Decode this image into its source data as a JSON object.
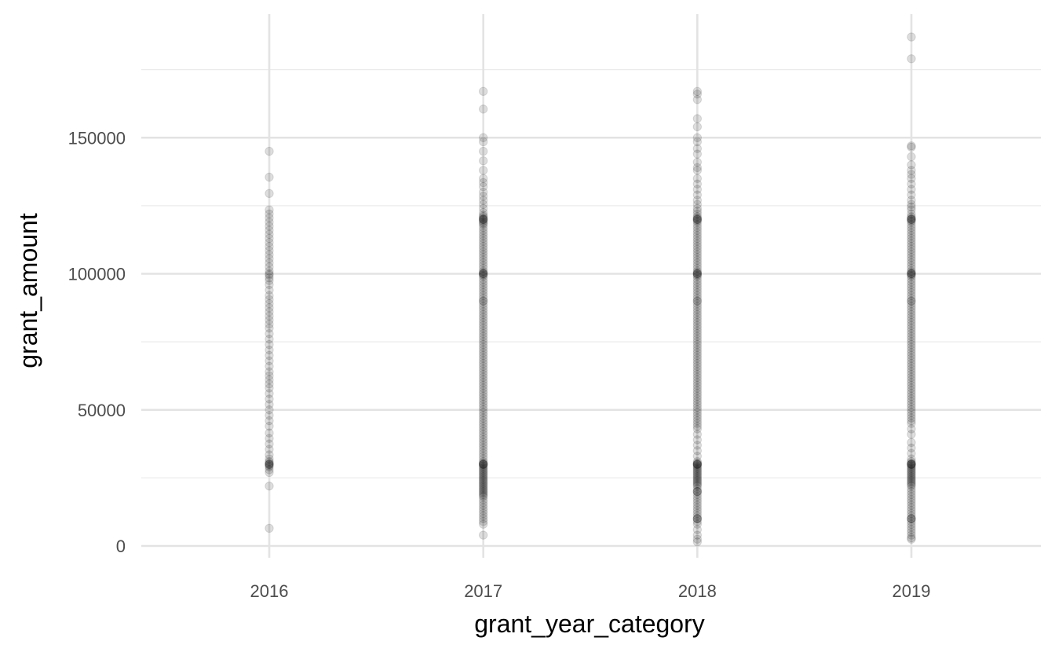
{
  "chart_data": {
    "type": "scatter",
    "title": "",
    "xlabel": "grant_year_category",
    "ylabel": "grant_amount",
    "categories": [
      "2016",
      "2017",
      "2018",
      "2019"
    ],
    "ylim": [
      -2500,
      192000
    ],
    "y_ticks": [
      0,
      50000,
      100000,
      150000
    ],
    "y_tick_labels": [
      "0",
      "50000",
      "100000",
      "150000"
    ],
    "grid": true,
    "legend": "none",
    "point_color": "#000000",
    "point_alpha": 0.13,
    "series": [
      {
        "category": "2016",
        "values": [
          145000,
          135500,
          129500,
          123500,
          122000,
          120500,
          119000,
          117500,
          116000,
          114500,
          113000,
          111500,
          110000,
          108500,
          107000,
          105500,
          104000,
          102500,
          101000,
          100000,
          99500,
          98500,
          97500,
          96000,
          94000,
          92000,
          90500,
          89000,
          87500,
          86000,
          84500,
          83000,
          81500,
          80000,
          78000,
          76000,
          74000,
          72000,
          70000,
          68000,
          66000,
          64000,
          62500,
          61000,
          59500,
          58000,
          56000,
          54000,
          52000,
          50000,
          48000,
          46000,
          44000,
          41500,
          39500,
          37500,
          35500,
          33500,
          32000,
          31000,
          30500,
          30000,
          30000,
          30000,
          29500,
          29000,
          28000,
          27000,
          22000,
          6500
        ]
      },
      {
        "category": "2017",
        "values": [
          167000,
          160500,
          150000,
          148500,
          145000,
          141500,
          138000,
          135000,
          133500,
          132000,
          130000,
          128500,
          127000,
          125500,
          124000,
          122500,
          121500,
          121000,
          120500,
          120000,
          120000,
          120000,
          119500,
          119000,
          118500,
          118000,
          117000,
          116000,
          115000,
          114000,
          113000,
          112000,
          111000,
          110000,
          109000,
          108000,
          107000,
          106000,
          105000,
          104000,
          103000,
          102000,
          101000,
          100500,
          100000,
          100000,
          100000,
          99500,
          99000,
          98000,
          97000,
          96000,
          95000,
          94000,
          93000,
          92000,
          91000,
          90000,
          90000,
          89000,
          88000,
          87000,
          86000,
          85000,
          84000,
          83000,
          82000,
          81000,
          80000,
          79000,
          78000,
          77000,
          76000,
          75000,
          74000,
          73000,
          72000,
          71000,
          70000,
          69000,
          68000,
          67000,
          66000,
          65000,
          64000,
          63000,
          62000,
          61000,
          60000,
          59000,
          58000,
          57000,
          56000,
          55000,
          54000,
          53000,
          52000,
          51000,
          50000,
          49000,
          48000,
          47000,
          46000,
          45000,
          44000,
          43000,
          42000,
          41000,
          40000,
          39000,
          38000,
          37000,
          36000,
          35000,
          34000,
          33000,
          32000,
          31000,
          30500,
          30000,
          30000,
          30000,
          30000,
          29500,
          29000,
          28500,
          28000,
          27500,
          27000,
          26500,
          26000,
          25500,
          25000,
          24500,
          24000,
          23500,
          23000,
          22500,
          22000,
          21500,
          21000,
          20500,
          20000,
          19500,
          19000,
          18500,
          18000,
          17000,
          16000,
          15000,
          14000,
          13000,
          12000,
          11000,
          10000,
          9000,
          8000,
          4000
        ]
      },
      {
        "category": "2018",
        "values": [
          167000,
          166000,
          164000,
          157000,
          154000,
          150000,
          148500,
          146000,
          144000,
          141000,
          139000,
          138000,
          135000,
          133000,
          131000,
          129000,
          127000,
          125500,
          124000,
          123000,
          122000,
          121000,
          120500,
          120000,
          120000,
          120000,
          119500,
          119000,
          118000,
          117000,
          116000,
          115000,
          114000,
          113000,
          112000,
          111000,
          110000,
          109000,
          108000,
          107000,
          106000,
          105000,
          104000,
          103000,
          102000,
          101000,
          100500,
          100000,
          100000,
          100000,
          99500,
          99000,
          98000,
          97000,
          96000,
          95000,
          94000,
          93000,
          92000,
          91000,
          90000,
          90000,
          89000,
          88000,
          87000,
          86000,
          85000,
          84000,
          83000,
          82000,
          81000,
          80000,
          79000,
          78000,
          77000,
          76000,
          75000,
          74000,
          73000,
          72000,
          71000,
          70000,
          69000,
          68000,
          67000,
          66000,
          65000,
          64000,
          63000,
          62000,
          61000,
          60000,
          59000,
          58000,
          57000,
          56000,
          55000,
          54000,
          53000,
          52000,
          51000,
          50000,
          49000,
          48000,
          47000,
          46000,
          45000,
          44000,
          43000,
          41000,
          39000,
          37000,
          35000,
          33000,
          31000,
          30500,
          30000,
          30000,
          30000,
          30000,
          29500,
          29000,
          28500,
          28000,
          27500,
          27000,
          26500,
          26000,
          25500,
          25000,
          24500,
          24000,
          23500,
          23000,
          22500,
          22000,
          21000,
          20000,
          20000,
          20000,
          19000,
          18000,
          17000,
          16000,
          15000,
          14000,
          13000,
          12000,
          11000,
          10000,
          10000,
          10000,
          9000,
          8000,
          6000,
          4000,
          2500,
          1500
        ]
      },
      {
        "category": "2019",
        "values": [
          187000,
          179000,
          147000,
          146500,
          143000,
          140000,
          138000,
          136500,
          135000,
          133000,
          131000,
          129000,
          127000,
          125500,
          124500,
          123500,
          122000,
          121000,
          120500,
          120000,
          120000,
          120000,
          119500,
          119000,
          118000,
          117000,
          116000,
          115000,
          114000,
          113000,
          112000,
          111000,
          110000,
          109000,
          108000,
          107000,
          106000,
          105000,
          104000,
          103000,
          102000,
          101000,
          100500,
          100000,
          100000,
          100000,
          99500,
          99000,
          98000,
          97000,
          96000,
          95000,
          94000,
          93000,
          92000,
          91000,
          90000,
          90000,
          89000,
          88000,
          87000,
          86000,
          85000,
          84000,
          83000,
          82000,
          81000,
          80000,
          79000,
          78000,
          77000,
          76000,
          75000,
          74000,
          73000,
          72000,
          71000,
          70000,
          69000,
          68000,
          67000,
          66000,
          65000,
          64000,
          63000,
          62000,
          61000,
          60000,
          59000,
          58000,
          57000,
          56000,
          55000,
          54000,
          53000,
          52000,
          51000,
          50000,
          49000,
          48000,
          47000,
          46000,
          45000,
          43000,
          41000,
          38000,
          36000,
          34000,
          32000,
          31000,
          30500,
          30000,
          30000,
          30000,
          30000,
          29500,
          29000,
          28500,
          28000,
          27500,
          27000,
          26500,
          26000,
          25500,
          25000,
          24500,
          24000,
          23500,
          23000,
          22500,
          22000,
          21000,
          20000,
          19000,
          18000,
          17000,
          16000,
          15000,
          14000,
          13000,
          12000,
          11000,
          10000,
          10000,
          10000,
          9000,
          8000,
          7000,
          6000,
          5000,
          4000,
          3000,
          2500
        ]
      }
    ]
  }
}
